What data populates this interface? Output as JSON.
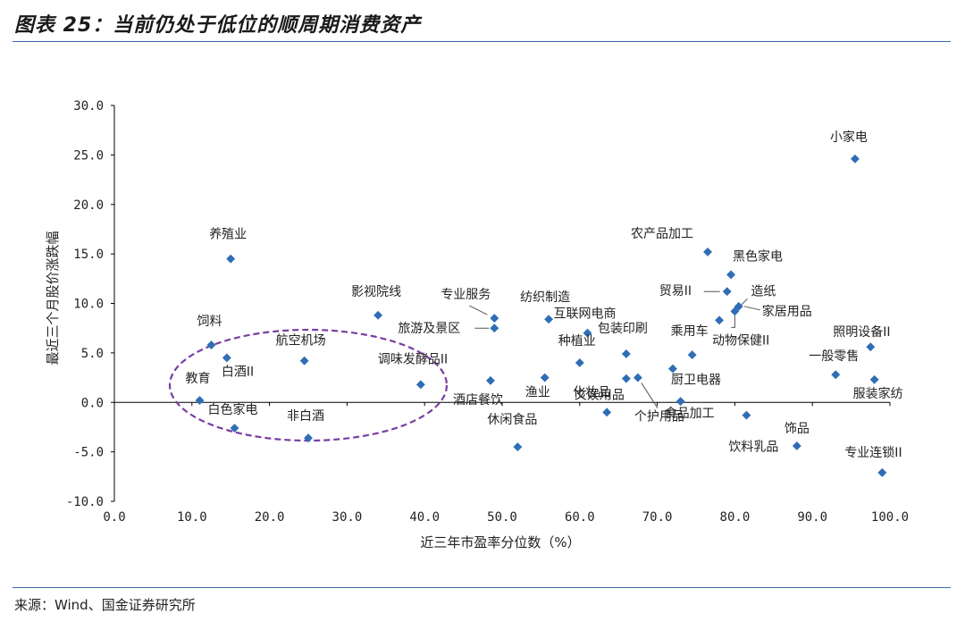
{
  "header": {
    "title": "图表 25：当前仍处于低位的顺周期消费资产"
  },
  "footer": {
    "source": "来源：Wind、国金证券研究所"
  },
  "colors": {
    "point": "#2f6eb5",
    "axis": "#000000",
    "rule": "#3c6aa6",
    "ellipse": "#7a3ea0"
  },
  "chart_data": {
    "type": "scatter",
    "title": "",
    "xlabel": "近三年市盈率分位数（%）",
    "ylabel": "最近三个月股价涨跌幅",
    "xlim": [
      0,
      100
    ],
    "ylim": [
      -10,
      30
    ],
    "xticks": [
      "0.0",
      "10.0",
      "20.0",
      "30.0",
      "40.0",
      "50.0",
      "60.0",
      "70.0",
      "80.0",
      "90.0",
      "100.0"
    ],
    "yticks": [
      "30.0",
      "25.0",
      "20.0",
      "15.0",
      "10.0",
      "5.0",
      "0.0",
      "-5.0",
      "-10.0"
    ],
    "grid": false,
    "highlight": "dashed ellipse around 教育, 白酒II, 白色家电, 航空机场, 非白酒, 调味发酵品II",
    "points": [
      {
        "label": "养殖业",
        "x": 15.0,
        "y": 14.5
      },
      {
        "label": "饲料",
        "x": 12.5,
        "y": 5.8
      },
      {
        "label": "白酒II",
        "x": 14.5,
        "y": 4.5
      },
      {
        "label": "教育",
        "x": 11.0,
        "y": 0.2
      },
      {
        "label": "白色家电",
        "x": 15.5,
        "y": -2.6
      },
      {
        "label": "航空机场",
        "x": 24.5,
        "y": 4.2
      },
      {
        "label": "非白酒",
        "x": 25.0,
        "y": -3.6
      },
      {
        "label": "影视院线",
        "x": 34.0,
        "y": 8.8
      },
      {
        "label": "调味发酵品II",
        "x": 39.5,
        "y": 1.8
      },
      {
        "label": "专业服务",
        "x": 49.0,
        "y": 8.5
      },
      {
        "label": "旅游及景区",
        "x": 49.0,
        "y": 7.5
      },
      {
        "label": "酒店餐饮",
        "x": 48.5,
        "y": 2.2
      },
      {
        "label": "休闲食品",
        "x": 52.0,
        "y": -4.5
      },
      {
        "label": "纺织制造",
        "x": 56.0,
        "y": 8.4
      },
      {
        "label": "渔业",
        "x": 55.5,
        "y": 2.5
      },
      {
        "label": "互联网电商",
        "x": 61.0,
        "y": 7.0
      },
      {
        "label": "种植业",
        "x": 60.0,
        "y": 4.0
      },
      {
        "label": "化妆品",
        "x": 63.5,
        "y": -1.0
      },
      {
        "label": "文娱用品",
        "x": 66.0,
        "y": 2.4
      },
      {
        "label": "包装印刷",
        "x": 66.0,
        "y": 4.9
      },
      {
        "label": "个护用品",
        "x": 67.5,
        "y": 2.5
      },
      {
        "label": "农产品加工",
        "x": 76.5,
        "y": 15.2
      },
      {
        "label": "黑色家电",
        "x": 79.5,
        "y": 12.9
      },
      {
        "label": "贸易II",
        "x": 79.0,
        "y": 11.2
      },
      {
        "label": "造纸",
        "x": 80.0,
        "y": 9.2
      },
      {
        "label": "家居用品",
        "x": 80.5,
        "y": 9.7
      },
      {
        "label": "动物保健II",
        "x": 78.0,
        "y": 8.3
      },
      {
        "label": "乘用车",
        "x": 74.5,
        "y": 4.8
      },
      {
        "label": "厨卫电器",
        "x": 72.0,
        "y": 3.4
      },
      {
        "label": "食品加工",
        "x": 73.0,
        "y": 0.1
      },
      {
        "label": "饮料乳品",
        "x": 81.5,
        "y": -1.3
      },
      {
        "label": "饰品",
        "x": 88.0,
        "y": -4.4
      },
      {
        "label": "小家电",
        "x": 95.5,
        "y": 24.6
      },
      {
        "label": "照明设备II",
        "x": 97.5,
        "y": 5.6
      },
      {
        "label": "一般零售",
        "x": 93.0,
        "y": 2.8
      },
      {
        "label": "服装家纺",
        "x": 98.0,
        "y": 2.3
      },
      {
        "label": "专业连锁II",
        "x": 99.0,
        "y": -7.1
      }
    ]
  }
}
